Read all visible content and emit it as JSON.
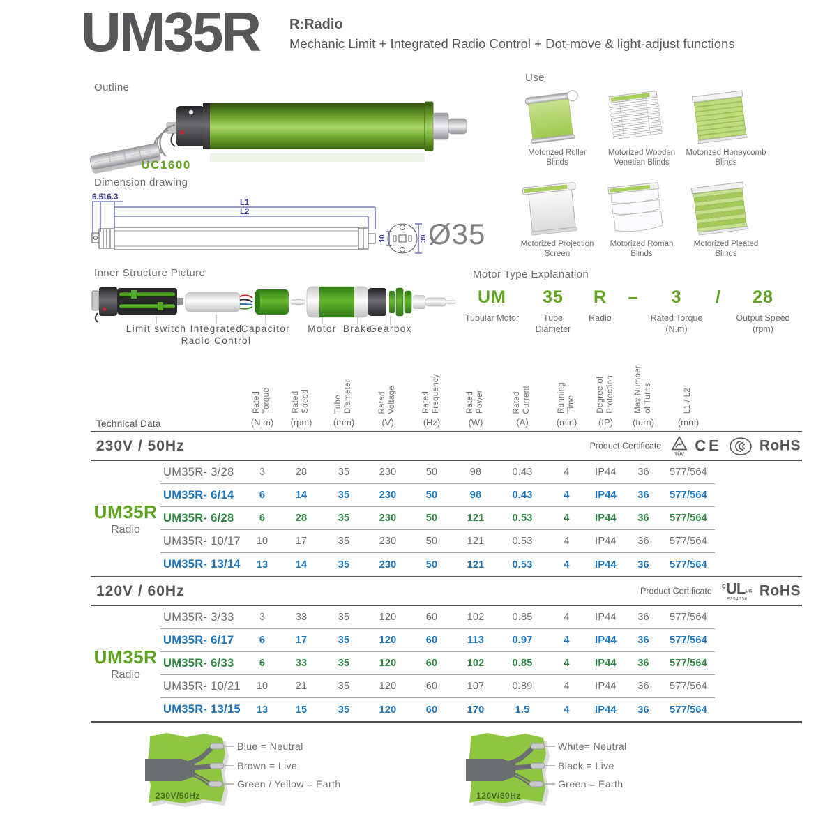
{
  "header": {
    "title": "UM35R",
    "type_code": "R:Radio",
    "subtitle": "Mechanic Limit + Integrated Radio Control + Dot-move & light-adjust functions"
  },
  "outline": {
    "label": "Outline",
    "remote_model": "UC1600"
  },
  "dimensions": {
    "label": "Dimension drawing",
    "d_bracket": "6.5",
    "d_head": "16.3",
    "l1": "L1",
    "l2": "L2",
    "shaft_width": "10",
    "flange_height": "39",
    "diameter": "Ø35"
  },
  "use": {
    "label": "Use",
    "items": [
      "Motorized Roller Blinds",
      "Motorized Wooden Venetian Blinds",
      "Motorized Honeycomb Blinds",
      "Motorized Projection Screen",
      "Motorized Roman Blinds",
      "Motorized Pleated Blinds"
    ]
  },
  "inner_structure": {
    "label": "Inner Structure Picture",
    "parts": [
      "Limit switch",
      "Integrated Radio Control",
      "Capacitor",
      "Motor",
      "Brake",
      "Gearbox"
    ]
  },
  "motor_type": {
    "label": "Motor Type Explanation",
    "segments": [
      {
        "code": "UM",
        "desc": "Tubular Motor"
      },
      {
        "code": "35",
        "desc": "Tube Diameter"
      },
      {
        "code": "R",
        "desc": "Radio"
      },
      {
        "code": "–",
        "desc": ""
      },
      {
        "code": "3",
        "desc": "Rated Torque (N.m)"
      },
      {
        "code": "/",
        "desc": ""
      },
      {
        "code": "28",
        "desc": "Output Speed (rpm)"
      }
    ]
  },
  "table": {
    "left_label": "Technical Data",
    "columns": [
      {
        "name": "Rated\nTorque",
        "unit": "(N.m)"
      },
      {
        "name": "Rated\nSpeed",
        "unit": "(rpm)"
      },
      {
        "name": "Tube\nDiameter",
        "unit": "(mm)"
      },
      {
        "name": "Rated\nVoltage",
        "unit": "(V)"
      },
      {
        "name": "Rated\nFrequency",
        "unit": "(Hz)"
      },
      {
        "name": "Rated\nPower",
        "unit": "(W)"
      },
      {
        "name": "Rated\nCurrent",
        "unit": "(A)"
      },
      {
        "name": "Running\nTime",
        "unit": "(min)"
      },
      {
        "name": "Degree of\nProtection",
        "unit": "(IP)"
      },
      {
        "name": "Max Number\nof Turns",
        "unit": "(turn)"
      },
      {
        "name": "L1 / L2",
        "unit": "(mm)"
      }
    ],
    "sections": [
      {
        "title": "230V / 50Hz",
        "certificate_label": "Product Certificate",
        "certificates": [
          "TUV",
          "CE",
          "CCC",
          "RoHS"
        ],
        "group": {
          "name": "UM35R",
          "sub": "Radio"
        },
        "rows": [
          {
            "model": "UM35R- 3/28",
            "color": "gray",
            "values": [
              "3",
              "28",
              "35",
              "230",
              "50",
              "98",
              "0.43",
              "4",
              "IP44",
              "36",
              "577/564"
            ]
          },
          {
            "model": "UM35R- 6/14",
            "color": "blue",
            "values": [
              "6",
              "14",
              "35",
              "230",
              "50",
              "98",
              "0.43",
              "4",
              "IP44",
              "36",
              "577/564"
            ]
          },
          {
            "model": "UM35R- 6/28",
            "color": "green",
            "values": [
              "6",
              "28",
              "35",
              "230",
              "50",
              "121",
              "0.53",
              "4",
              "IP44",
              "36",
              "577/564"
            ]
          },
          {
            "model": "UM35R- 10/17",
            "color": "gray",
            "values": [
              "10",
              "17",
              "35",
              "230",
              "50",
              "121",
              "0.53",
              "4",
              "IP44",
              "36",
              "577/564"
            ]
          },
          {
            "model": "UM35R- 13/14",
            "color": "blue",
            "values": [
              "13",
              "14",
              "35",
              "230",
              "50",
              "121",
              "0.53",
              "4",
              "IP44",
              "36",
              "577/564"
            ]
          }
        ]
      },
      {
        "title": "120V / 60Hz",
        "certificate_label": "Product Certificate",
        "certificates": [
          "cULus E254258",
          "RoHS"
        ],
        "group": {
          "name": "UM35R",
          "sub": "Radio"
        },
        "rows": [
          {
            "model": "UM35R- 3/33",
            "color": "gray",
            "values": [
              "3",
              "33",
              "35",
              "120",
              "60",
              "102",
              "0.85",
              "4",
              "IP44",
              "36",
              "577/564"
            ]
          },
          {
            "model": "UM35R- 6/17",
            "color": "blue",
            "values": [
              "6",
              "17",
              "35",
              "120",
              "60",
              "113",
              "0.97",
              "4",
              "IP44",
              "36",
              "577/564"
            ]
          },
          {
            "model": "UM35R- 6/33",
            "color": "green",
            "values": [
              "6",
              "33",
              "35",
              "120",
              "60",
              "102",
              "0.85",
              "4",
              "IP44",
              "36",
              "577/564"
            ]
          },
          {
            "model": "UM35R- 10/21",
            "color": "gray",
            "values": [
              "10",
              "21",
              "35",
              "120",
              "60",
              "107",
              "0.89",
              "4",
              "IP44",
              "36",
              "577/564"
            ]
          },
          {
            "model": "UM35R- 13/15",
            "color": "blue",
            "values": [
              "13",
              "15",
              "35",
              "120",
              "60",
              "170",
              "1.5",
              "4",
              "IP44",
              "36",
              "577/564"
            ]
          }
        ]
      }
    ]
  },
  "certificates": {
    "tuv": "TÜV",
    "ce": "CE",
    "rohs": "RoHS",
    "ul_prefix": "c",
    "ul": "UL",
    "ul_suffix": "us",
    "ul_code": "E254258"
  },
  "wiring": [
    {
      "voltage": "230V/50Hz",
      "wires": [
        "Blue = Neutral",
        "Brown = Live",
        "Green / Yellow = Earth"
      ]
    },
    {
      "voltage": "120V/60Hz",
      "wires": [
        "White= Neutral",
        "Black = Live",
        "Green = Earth"
      ]
    }
  ],
  "colors": {
    "brand_green": "#5fa321",
    "row_blue": "#1b75bc",
    "row_green": "#2e8540",
    "text_gray": "#6d6e71",
    "dark_gray": "#58585a",
    "dimension_blue": "#3d3d99",
    "wiring_green": "#8fc641"
  }
}
